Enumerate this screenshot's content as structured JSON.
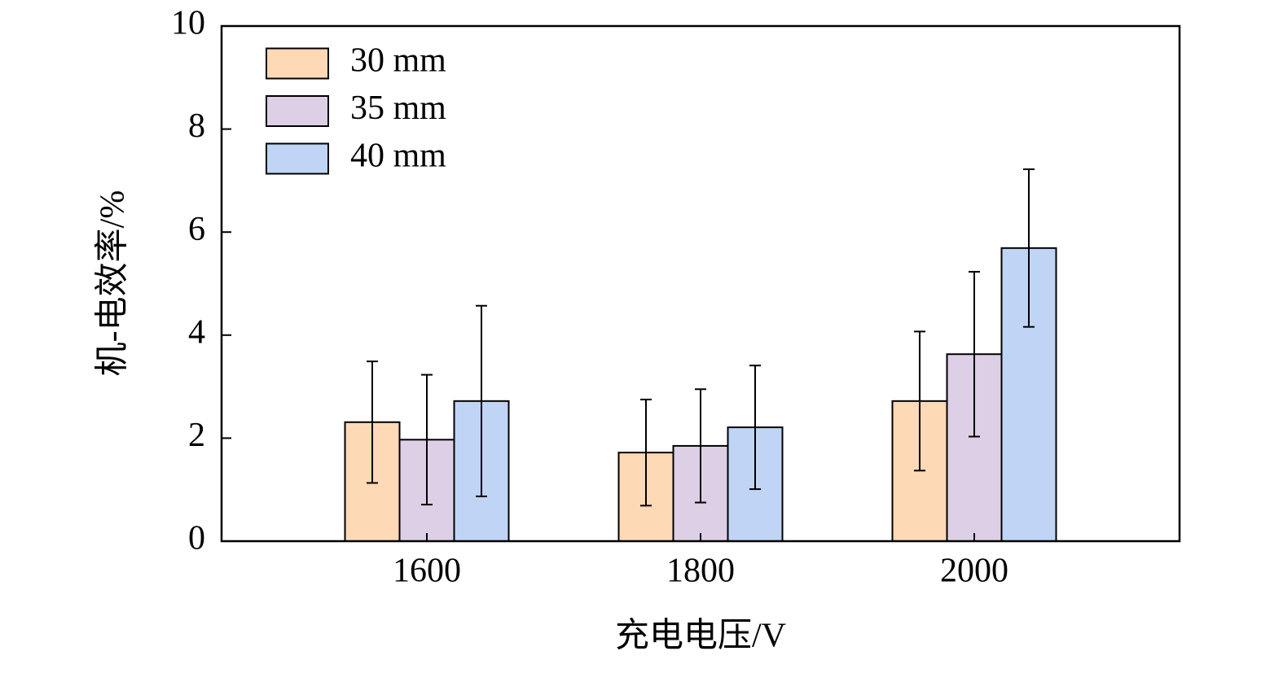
{
  "chart_data": {
    "type": "bar",
    "x_label": "充电电压/V",
    "y_label": "机-电效率/%",
    "categories": [
      "1600",
      "1800",
      "2000"
    ],
    "series": [
      {
        "name": "30 mm",
        "color": "#fdd9b5",
        "values": [
          2.31,
          1.72,
          2.72
        ],
        "errors": [
          1.18,
          1.03,
          1.35
        ]
      },
      {
        "name": "35 mm",
        "color": "#dccfe6",
        "values": [
          1.97,
          1.85,
          3.63
        ],
        "errors": [
          1.26,
          1.1,
          1.6
        ]
      },
      {
        "name": "40 mm",
        "color": "#c0d4f5",
        "values": [
          2.72,
          2.21,
          5.69
        ],
        "errors": [
          1.85,
          1.2,
          1.53
        ]
      }
    ],
    "ylim": [
      0,
      10
    ],
    "yticks": [
      0,
      2,
      4,
      6,
      8,
      10
    ],
    "legend": "upper-left"
  }
}
